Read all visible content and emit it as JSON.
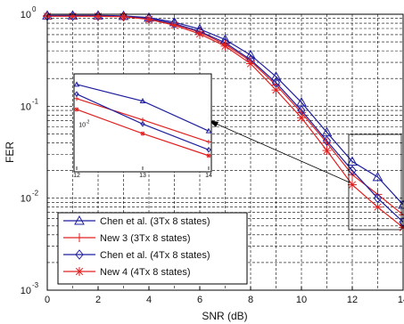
{
  "chart_data": {
    "type": "line",
    "xlabel": "SNR (dB)",
    "ylabel": "FER",
    "xlim": [
      0,
      14
    ],
    "ylim": [
      0.001,
      1
    ],
    "y_scale": "log",
    "grid": true,
    "legend_position": "bottom-left",
    "x_ticks": [
      "0",
      "2",
      "4",
      "6",
      "8",
      "10",
      "12",
      "14"
    ],
    "y_ticks": [
      {
        "base": "10",
        "exp": "0",
        "value": 1
      },
      {
        "base": "10",
        "exp": "-1",
        "value": 0.1
      },
      {
        "base": "10",
        "exp": "-2",
        "value": 0.01
      },
      {
        "base": "10",
        "exp": "-3",
        "value": 0.001
      }
    ],
    "x": [
      0,
      1,
      2,
      3,
      4,
      5,
      6,
      7,
      8,
      9,
      10,
      11,
      12,
      13,
      14
    ],
    "series": [
      {
        "name": "Chen et al. (3Tx 8 states)",
        "color": "#1f1f9e",
        "marker": "triangle",
        "values": [
          0.97,
          0.97,
          0.97,
          0.96,
          0.92,
          0.82,
          0.69,
          0.53,
          0.36,
          0.21,
          0.11,
          0.052,
          0.025,
          0.017,
          0.0085
        ]
      },
      {
        "name": "New 3  (3Tx 8 states)",
        "color": "#e02020",
        "marker": "plus",
        "values": [
          0.96,
          0.96,
          0.96,
          0.95,
          0.9,
          0.78,
          0.64,
          0.47,
          0.31,
          0.17,
          0.085,
          0.04,
          0.018,
          0.011,
          0.0066
        ]
      },
      {
        "name": "Chen et al. (4Tx 8 states)",
        "color": "#1f1f9e",
        "marker": "diamond",
        "values": [
          0.96,
          0.96,
          0.96,
          0.95,
          0.9,
          0.79,
          0.65,
          0.49,
          0.32,
          0.18,
          0.09,
          0.042,
          0.02,
          0.01,
          0.0055
        ]
      },
      {
        "name": "New 4 (4Tx 8 states)",
        "color": "#e02020",
        "marker": "star",
        "values": [
          0.95,
          0.95,
          0.95,
          0.94,
          0.88,
          0.76,
          0.61,
          0.45,
          0.29,
          0.15,
          0.075,
          0.033,
          0.014,
          0.008,
          0.0048
        ]
      }
    ],
    "inset": {
      "x_ticks": [
        "12",
        "13",
        "14"
      ],
      "y_tick": {
        "base": "10",
        "exp": "-2"
      }
    }
  }
}
